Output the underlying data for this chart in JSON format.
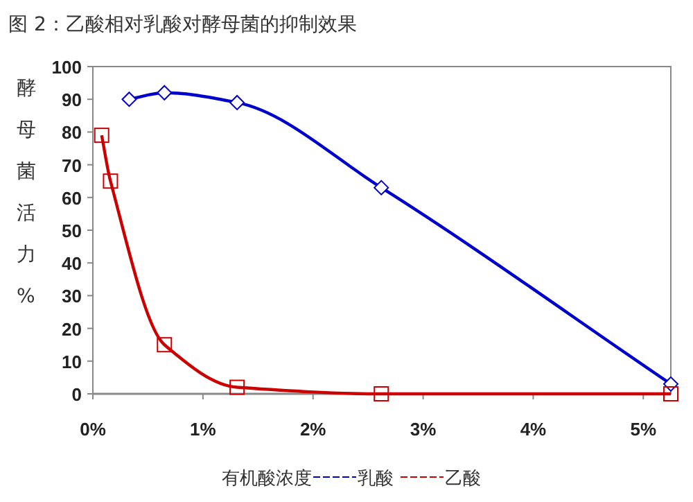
{
  "chart_data": {
    "type": "line",
    "title": "图 2：乙酸相对乳酸对酵母菌的抑制效果",
    "xlabel": "有机酸浓度",
    "ylabel": "酵母菌活力 %",
    "series": [
      {
        "name": "乳酸",
        "color": "#0000cc",
        "marker": "diamond",
        "x": [
          0.33,
          0.65,
          1.31,
          2.62,
          5.25
        ],
        "values": [
          90,
          92,
          89,
          63,
          3
        ]
      },
      {
        "name": "乙酸",
        "color": "#cc0000",
        "marker": "square",
        "x": [
          0.08,
          0.16,
          0.65,
          1.31,
          2.62,
          5.25
        ],
        "values": [
          79,
          65,
          15,
          2,
          0,
          0
        ]
      }
    ],
    "xlim": [
      0,
      5.25
    ],
    "ylim": [
      0,
      100
    ],
    "xticks": [
      {
        "value": 0,
        "label": "0%"
      },
      {
        "value": 1,
        "label": "1%"
      },
      {
        "value": 2,
        "label": "2%"
      },
      {
        "value": 3,
        "label": "3%"
      },
      {
        "value": 4,
        "label": "4%"
      },
      {
        "value": 5,
        "label": "5%"
      }
    ],
    "yticks": [
      0,
      10,
      20,
      30,
      40,
      50,
      60,
      70,
      80,
      90,
      100
    ],
    "grid": false,
    "legend": "bottom"
  }
}
